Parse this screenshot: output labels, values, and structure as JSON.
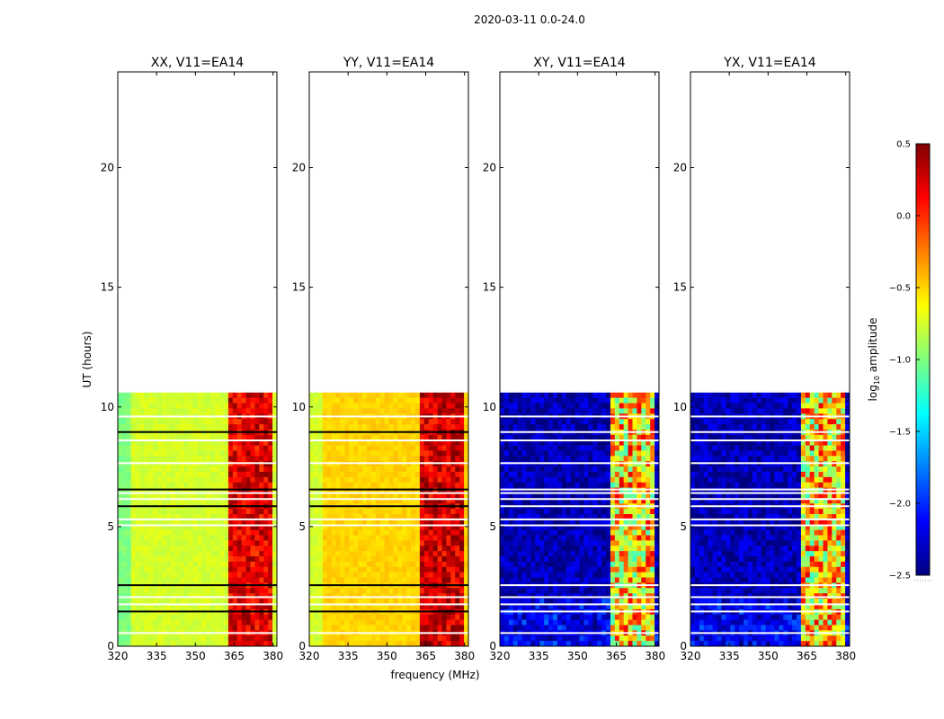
{
  "figure_title": "2020-03-11 0.0-24.0",
  "colormap": [
    "#00007f",
    "#0000ff",
    "#007fff",
    "#00ffff",
    "#7fff7f",
    "#ffff00",
    "#ff7f00",
    "#ff0000",
    "#7f0000"
  ],
  "chart_data": {
    "type": "heatmap",
    "suptitle": "2020-03-11 0.0-24.0",
    "xlabel": "frequency (MHz)",
    "ylabel": "UT (hours)",
    "xlim": [
      320,
      381.5
    ],
    "ylim": [
      0,
      24
    ],
    "x_ticks": [
      "320",
      "335",
      "350",
      "365",
      "380"
    ],
    "x_tick_values": [
      320,
      335,
      350,
      365,
      380
    ],
    "y_ticks": [
      "0",
      "5",
      "10",
      "15",
      "20"
    ],
    "y_tick_values": [
      0,
      5,
      10,
      15,
      20
    ],
    "data_time_range": [
      0,
      10.6
    ],
    "rfi_band_MHz": [
      362,
      380
    ],
    "gap_lines_hours": [
      0.55,
      1.45,
      1.75,
      2.05,
      2.55,
      5.05,
      5.3,
      5.85,
      6.15,
      6.4,
      6.55,
      7.65,
      8.6,
      8.95,
      9.6
    ],
    "panels": [
      {
        "title": "XX, V11=EA14",
        "baseline_log10_amp": -0.75,
        "band_log10_amp": 0.2
      },
      {
        "title": "YY, V11=EA14",
        "baseline_log10_amp": -0.5,
        "band_log10_amp": 0.25
      },
      {
        "title": "XY, V11=EA14",
        "baseline_log10_amp": -2.35,
        "band_log10_amp": -0.5
      },
      {
        "title": "YX, V11=EA14",
        "baseline_log10_amp": -2.35,
        "band_log10_amp": -0.5
      }
    ],
    "colorbar": {
      "label": "log10 amplitude",
      "range": [
        -2.5,
        0.5
      ],
      "ticks": [
        "0.5",
        "0.0",
        "−0.5",
        "−1.0",
        "−1.5",
        "−2.0",
        "−2.5"
      ],
      "tick_values": [
        0.5,
        0.0,
        -0.5,
        -1.0,
        -1.5,
        -2.0,
        -2.5
      ]
    }
  }
}
